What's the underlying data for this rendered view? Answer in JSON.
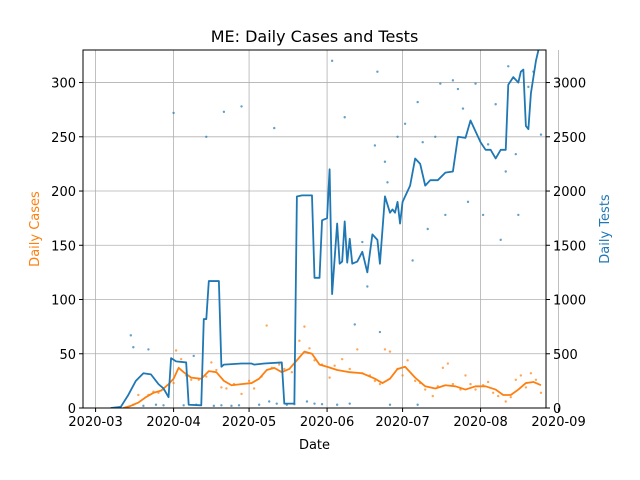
{
  "chart_data": {
    "type": "line",
    "title": "ME: Daily Cases and Tests",
    "xlabel": "Date",
    "ylabel_left": "Daily Cases",
    "ylabel_right": "Daily Tests",
    "colors": {
      "cases": "#ff7f0e",
      "tests": "#1f77b4"
    },
    "xlim": [
      "2020-02-25",
      "2020-08-27"
    ],
    "ylim_left": [
      0,
      330
    ],
    "ylim_right": [
      0,
      3300
    ],
    "grid": true,
    "x_ticks": [
      "2020-03",
      "2020-04",
      "2020-05",
      "2020-06",
      "2020-07",
      "2020-08",
      "2020-09"
    ],
    "x_tick_dates": [
      "2020-03-01",
      "2020-04-01",
      "2020-05-01",
      "2020-06-01",
      "2020-07-01",
      "2020-08-01",
      "2020-09-01"
    ],
    "y_ticks_left": [
      0,
      50,
      100,
      150,
      200,
      250,
      300
    ],
    "y_ticks_right": [
      0,
      500,
      1000,
      1500,
      2000,
      2500,
      3000
    ],
    "series": [
      {
        "axis": "left",
        "kind": "line",
        "points": [
          [
            "2020-03-12",
            0
          ],
          [
            "2020-03-15",
            2
          ],
          [
            "2020-03-18",
            5
          ],
          [
            "2020-03-21",
            10
          ],
          [
            "2020-03-24",
            14
          ],
          [
            "2020-03-27",
            16
          ],
          [
            "2020-03-30",
            22
          ],
          [
            "2020-04-01",
            27
          ],
          [
            "2020-04-03",
            37
          ],
          [
            "2020-04-05",
            33
          ],
          [
            "2020-04-08",
            28
          ],
          [
            "2020-04-12",
            27
          ],
          [
            "2020-04-15",
            34
          ],
          [
            "2020-04-18",
            33
          ],
          [
            "2020-04-21",
            25
          ],
          [
            "2020-04-24",
            21
          ],
          [
            "2020-04-28",
            22
          ],
          [
            "2020-05-02",
            23
          ],
          [
            "2020-05-05",
            27
          ],
          [
            "2020-05-08",
            35
          ],
          [
            "2020-05-11",
            37
          ],
          [
            "2020-05-14",
            33
          ],
          [
            "2020-05-17",
            36
          ],
          [
            "2020-05-20",
            44
          ],
          [
            "2020-05-23",
            52
          ],
          [
            "2020-05-26",
            50
          ],
          [
            "2020-05-29",
            40
          ],
          [
            "2020-06-01",
            38
          ],
          [
            "2020-06-05",
            35
          ],
          [
            "2020-06-10",
            33
          ],
          [
            "2020-06-15",
            32
          ],
          [
            "2020-06-20",
            27
          ],
          [
            "2020-06-23",
            23
          ],
          [
            "2020-06-26",
            27
          ],
          [
            "2020-06-29",
            36
          ],
          [
            "2020-07-02",
            38
          ],
          [
            "2020-07-06",
            28
          ],
          [
            "2020-07-10",
            20
          ],
          [
            "2020-07-14",
            18
          ],
          [
            "2020-07-18",
            21
          ],
          [
            "2020-07-22",
            20
          ],
          [
            "2020-07-26",
            17
          ],
          [
            "2020-07-30",
            20
          ],
          [
            "2020-08-03",
            20
          ],
          [
            "2020-08-07",
            17
          ],
          [
            "2020-08-10",
            12
          ],
          [
            "2020-08-13",
            12
          ],
          [
            "2020-08-16",
            17
          ],
          [
            "2020-08-19",
            23
          ],
          [
            "2020-08-22",
            24
          ],
          [
            "2020-08-25",
            21
          ]
        ]
      },
      {
        "axis": "right",
        "kind": "line",
        "points": [
          [
            "2020-03-07",
            0
          ],
          [
            "2020-03-11",
            10
          ],
          [
            "2020-03-14",
            120
          ],
          [
            "2020-03-17",
            250
          ],
          [
            "2020-03-20",
            320
          ],
          [
            "2020-03-23",
            310
          ],
          [
            "2020-03-26",
            220
          ],
          [
            "2020-03-28",
            180
          ],
          [
            "2020-03-30",
            100
          ],
          [
            "2020-03-31",
            460
          ],
          [
            "2020-04-02",
            430
          ],
          [
            "2020-04-06",
            420
          ],
          [
            "2020-04-07",
            30
          ],
          [
            "2020-04-12",
            25
          ],
          [
            "2020-04-13",
            820
          ],
          [
            "2020-04-14",
            820
          ],
          [
            "2020-04-15",
            1170
          ],
          [
            "2020-04-19",
            1170
          ],
          [
            "2020-04-20",
            380
          ],
          [
            "2020-04-21",
            400
          ],
          [
            "2020-04-28",
            410
          ],
          [
            "2020-05-02",
            410
          ],
          [
            "2020-05-03",
            400
          ],
          [
            "2020-05-07",
            410
          ],
          [
            "2020-05-14",
            420
          ],
          [
            "2020-05-15",
            40
          ],
          [
            "2020-05-19",
            40
          ],
          [
            "2020-05-20",
            1950
          ],
          [
            "2020-05-22",
            1960
          ],
          [
            "2020-05-26",
            1960
          ],
          [
            "2020-05-27",
            1200
          ],
          [
            "2020-05-29",
            1200
          ],
          [
            "2020-05-30",
            1730
          ],
          [
            "2020-06-01",
            1750
          ],
          [
            "2020-06-02",
            2200
          ],
          [
            "2020-06-03",
            1050
          ],
          [
            "2020-06-05",
            1700
          ],
          [
            "2020-06-06",
            1330
          ],
          [
            "2020-06-07",
            1350
          ],
          [
            "2020-06-08",
            1720
          ],
          [
            "2020-06-09",
            1340
          ],
          [
            "2020-06-10",
            1560
          ],
          [
            "2020-06-11",
            1330
          ],
          [
            "2020-06-13",
            1350
          ],
          [
            "2020-06-15",
            1440
          ],
          [
            "2020-06-17",
            1250
          ],
          [
            "2020-06-19",
            1600
          ],
          [
            "2020-06-21",
            1550
          ],
          [
            "2020-06-22",
            1330
          ],
          [
            "2020-06-24",
            1950
          ],
          [
            "2020-06-26",
            1800
          ],
          [
            "2020-06-27",
            1830
          ],
          [
            "2020-06-28",
            1800
          ],
          [
            "2020-06-29",
            1900
          ],
          [
            "2020-06-30",
            1700
          ],
          [
            "2020-07-01",
            1900
          ],
          [
            "2020-07-04",
            2050
          ],
          [
            "2020-07-06",
            2300
          ],
          [
            "2020-07-08",
            2250
          ],
          [
            "2020-07-10",
            2050
          ],
          [
            "2020-07-12",
            2100
          ],
          [
            "2020-07-15",
            2100
          ],
          [
            "2020-07-18",
            2170
          ],
          [
            "2020-07-21",
            2180
          ],
          [
            "2020-07-23",
            2500
          ],
          [
            "2020-07-26",
            2490
          ],
          [
            "2020-07-28",
            2650
          ],
          [
            "2020-07-30",
            2550
          ],
          [
            "2020-08-01",
            2450
          ],
          [
            "2020-08-03",
            2380
          ],
          [
            "2020-08-05",
            2380
          ],
          [
            "2020-08-07",
            2300
          ],
          [
            "2020-08-09",
            2380
          ],
          [
            "2020-08-11",
            2380
          ],
          [
            "2020-08-12",
            2980
          ],
          [
            "2020-08-14",
            3050
          ],
          [
            "2020-08-16",
            3000
          ],
          [
            "2020-08-17",
            3100
          ],
          [
            "2020-08-18",
            3120
          ],
          [
            "2020-08-19",
            2600
          ],
          [
            "2020-08-20",
            2570
          ],
          [
            "2020-08-21",
            2900
          ],
          [
            "2020-08-23",
            3200
          ],
          [
            "2020-08-24",
            3300
          ]
        ]
      },
      {
        "axis": "right",
        "kind": "scatter",
        "points": [
          [
            "2020-04-01",
            2720
          ],
          [
            "2020-04-14",
            2500
          ],
          [
            "2020-04-21",
            2730
          ],
          [
            "2020-04-28",
            2780
          ],
          [
            "2020-05-11",
            2580
          ],
          [
            "2020-06-03",
            3200
          ],
          [
            "2020-06-21",
            3100
          ],
          [
            "2020-06-08",
            2680
          ],
          [
            "2020-06-15",
            1530
          ],
          [
            "2020-06-17",
            1120
          ],
          [
            "2020-06-20",
            2420
          ],
          [
            "2020-06-24",
            2270
          ],
          [
            "2020-06-25",
            2080
          ],
          [
            "2020-06-29",
            2500
          ],
          [
            "2020-07-02",
            2620
          ],
          [
            "2020-07-05",
            1360
          ],
          [
            "2020-07-07",
            2820
          ],
          [
            "2020-07-09",
            2450
          ],
          [
            "2020-07-11",
            1650
          ],
          [
            "2020-07-14",
            2500
          ],
          [
            "2020-07-16",
            2990
          ],
          [
            "2020-07-18",
            1780
          ],
          [
            "2020-07-21",
            3020
          ],
          [
            "2020-07-23",
            2940
          ],
          [
            "2020-07-25",
            2760
          ],
          [
            "2020-07-27",
            1900
          ],
          [
            "2020-07-30",
            2990
          ],
          [
            "2020-08-02",
            1780
          ],
          [
            "2020-08-04",
            2430
          ],
          [
            "2020-08-07",
            2800
          ],
          [
            "2020-08-09",
            1550
          ],
          [
            "2020-08-11",
            2180
          ],
          [
            "2020-08-12",
            3150
          ],
          [
            "2020-08-15",
            2340
          ],
          [
            "2020-08-16",
            1780
          ],
          [
            "2020-08-20",
            2960
          ],
          [
            "2020-08-22",
            3100
          ],
          [
            "2020-08-25",
            2520
          ],
          [
            "2020-03-15",
            670
          ],
          [
            "2020-03-16",
            560
          ],
          [
            "2020-03-22",
            540
          ],
          [
            "2020-06-12",
            770
          ],
          [
            "2020-06-22",
            700
          ],
          [
            "2020-04-09",
            480
          ],
          [
            "2020-03-20",
            20
          ],
          [
            "2020-03-25",
            30
          ],
          [
            "2020-03-28",
            25
          ],
          [
            "2020-04-05",
            25
          ],
          [
            "2020-04-10",
            30
          ],
          [
            "2020-04-17",
            20
          ],
          [
            "2020-04-20",
            25
          ],
          [
            "2020-04-24",
            20
          ],
          [
            "2020-04-27",
            25
          ],
          [
            "2020-05-05",
            30
          ],
          [
            "2020-05-09",
            60
          ],
          [
            "2020-05-12",
            40
          ],
          [
            "2020-05-16",
            30
          ],
          [
            "2020-05-19",
            35
          ],
          [
            "2020-05-24",
            60
          ],
          [
            "2020-05-27",
            40
          ],
          [
            "2020-05-30",
            35
          ],
          [
            "2020-06-05",
            30
          ],
          [
            "2020-06-10",
            40
          ],
          [
            "2020-06-26",
            30
          ],
          [
            "2020-07-07",
            30
          ]
        ]
      },
      {
        "axis": "left",
        "kind": "scatter",
        "points": [
          [
            "2020-03-13",
            0
          ],
          [
            "2020-03-16",
            3
          ],
          [
            "2020-03-18",
            12
          ],
          [
            "2020-03-22",
            12
          ],
          [
            "2020-03-24",
            15
          ],
          [
            "2020-03-26",
            14
          ],
          [
            "2020-03-28",
            17
          ],
          [
            "2020-03-30",
            21
          ],
          [
            "2020-04-01",
            23
          ],
          [
            "2020-04-02",
            53
          ],
          [
            "2020-04-04",
            45
          ],
          [
            "2020-04-06",
            30
          ],
          [
            "2020-04-08",
            26
          ],
          [
            "2020-04-11",
            26
          ],
          [
            "2020-04-14",
            29
          ],
          [
            "2020-04-16",
            42
          ],
          [
            "2020-04-18",
            35
          ],
          [
            "2020-04-20",
            19
          ],
          [
            "2020-04-22",
            18
          ],
          [
            "2020-04-25",
            22
          ],
          [
            "2020-04-28",
            13
          ],
          [
            "2020-05-01",
            25
          ],
          [
            "2020-05-03",
            18
          ],
          [
            "2020-05-06",
            29
          ],
          [
            "2020-05-08",
            76
          ],
          [
            "2020-05-10",
            37
          ],
          [
            "2020-05-13",
            40
          ],
          [
            "2020-05-15",
            36
          ],
          [
            "2020-05-18",
            33
          ],
          [
            "2020-05-21",
            62
          ],
          [
            "2020-05-23",
            75
          ],
          [
            "2020-05-25",
            55
          ],
          [
            "2020-05-27",
            44
          ],
          [
            "2020-05-30",
            40
          ],
          [
            "2020-06-02",
            28
          ],
          [
            "2020-06-04",
            39
          ],
          [
            "2020-06-07",
            45
          ],
          [
            "2020-06-10",
            36
          ],
          [
            "2020-06-13",
            54
          ],
          [
            "2020-06-15",
            32
          ],
          [
            "2020-06-18",
            30
          ],
          [
            "2020-06-20",
            25
          ],
          [
            "2020-06-22",
            22
          ],
          [
            "2020-06-24",
            54
          ],
          [
            "2020-06-26",
            52
          ],
          [
            "2020-06-29",
            36
          ],
          [
            "2020-07-01",
            30
          ],
          [
            "2020-07-03",
            44
          ],
          [
            "2020-07-06",
            25
          ],
          [
            "2020-07-08",
            23
          ],
          [
            "2020-07-10",
            17
          ],
          [
            "2020-07-13",
            11
          ],
          [
            "2020-07-15",
            20
          ],
          [
            "2020-07-17",
            37
          ],
          [
            "2020-07-19",
            41
          ],
          [
            "2020-07-21",
            22
          ],
          [
            "2020-07-24",
            17
          ],
          [
            "2020-07-26",
            30
          ],
          [
            "2020-07-28",
            22
          ],
          [
            "2020-07-30",
            17
          ],
          [
            "2020-08-02",
            21
          ],
          [
            "2020-08-04",
            24
          ],
          [
            "2020-08-06",
            14
          ],
          [
            "2020-08-08",
            11
          ],
          [
            "2020-08-11",
            6
          ],
          [
            "2020-08-13",
            10
          ],
          [
            "2020-08-15",
            26
          ],
          [
            "2020-08-17",
            30
          ],
          [
            "2020-08-19",
            19
          ],
          [
            "2020-08-21",
            32
          ],
          [
            "2020-08-23",
            26
          ],
          [
            "2020-08-25",
            14
          ]
        ]
      }
    ]
  }
}
